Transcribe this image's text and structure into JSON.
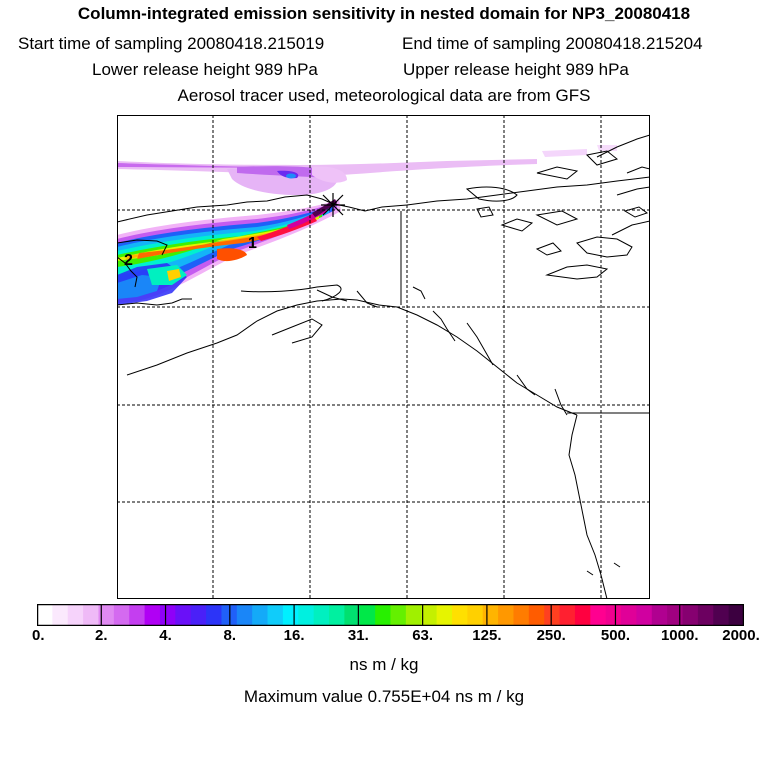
{
  "header": {
    "title": "Column-integrated emission sensitivity in nested domain for NP3_20080418",
    "start_label": "Start time of sampling 20080418.215019",
    "end_label": "End time of sampling 20080418.215204",
    "lower_label": "Lower release height  989 hPa",
    "upper_label": "Upper release height  989 hPa",
    "note": "Aerosol tracer used, meteorological data are from GFS"
  },
  "map": {
    "plume_labels": [
      "1",
      "2"
    ],
    "gridlines": "dashed",
    "release_marker": "x-cross"
  },
  "colorbar": {
    "tick_labels": [
      "0.",
      "2.",
      "4.",
      "8.",
      "16.",
      "31.",
      "63.",
      "125.",
      "250.",
      "500.",
      "1000.",
      "2000."
    ],
    "colors": [
      "#ffffff",
      "#fbe9fd",
      "#f6d3fb",
      "#efbaf7",
      "#e08af2",
      "#d46af0",
      "#c43ef0",
      "#b000f4",
      "#8f00f8",
      "#6a10f8",
      "#4a20f8",
      "#2c34f8",
      "#2060f8",
      "#1a86f8",
      "#14aaf8",
      "#10ccfa",
      "#00f0ff",
      "#00f0e0",
      "#00f0c0",
      "#00f0a0",
      "#00e070",
      "#00e848",
      "#28f000",
      "#64f000",
      "#a0f000",
      "#c4f000",
      "#e6f400",
      "#ffe000",
      "#ffd000",
      "#ffb400",
      "#ff9800",
      "#ff7c00",
      "#ff5c00",
      "#ff4020",
      "#ff2030",
      "#ff0040",
      "#ff0090",
      "#f00090",
      "#e00098",
      "#d000a0",
      "#b00090",
      "#a00080",
      "#860070",
      "#6c0060",
      "#500050",
      "#3c0040"
    ],
    "units": "ns m / kg",
    "max_label": "Maximum value  0.755E+04 ns m / kg"
  }
}
